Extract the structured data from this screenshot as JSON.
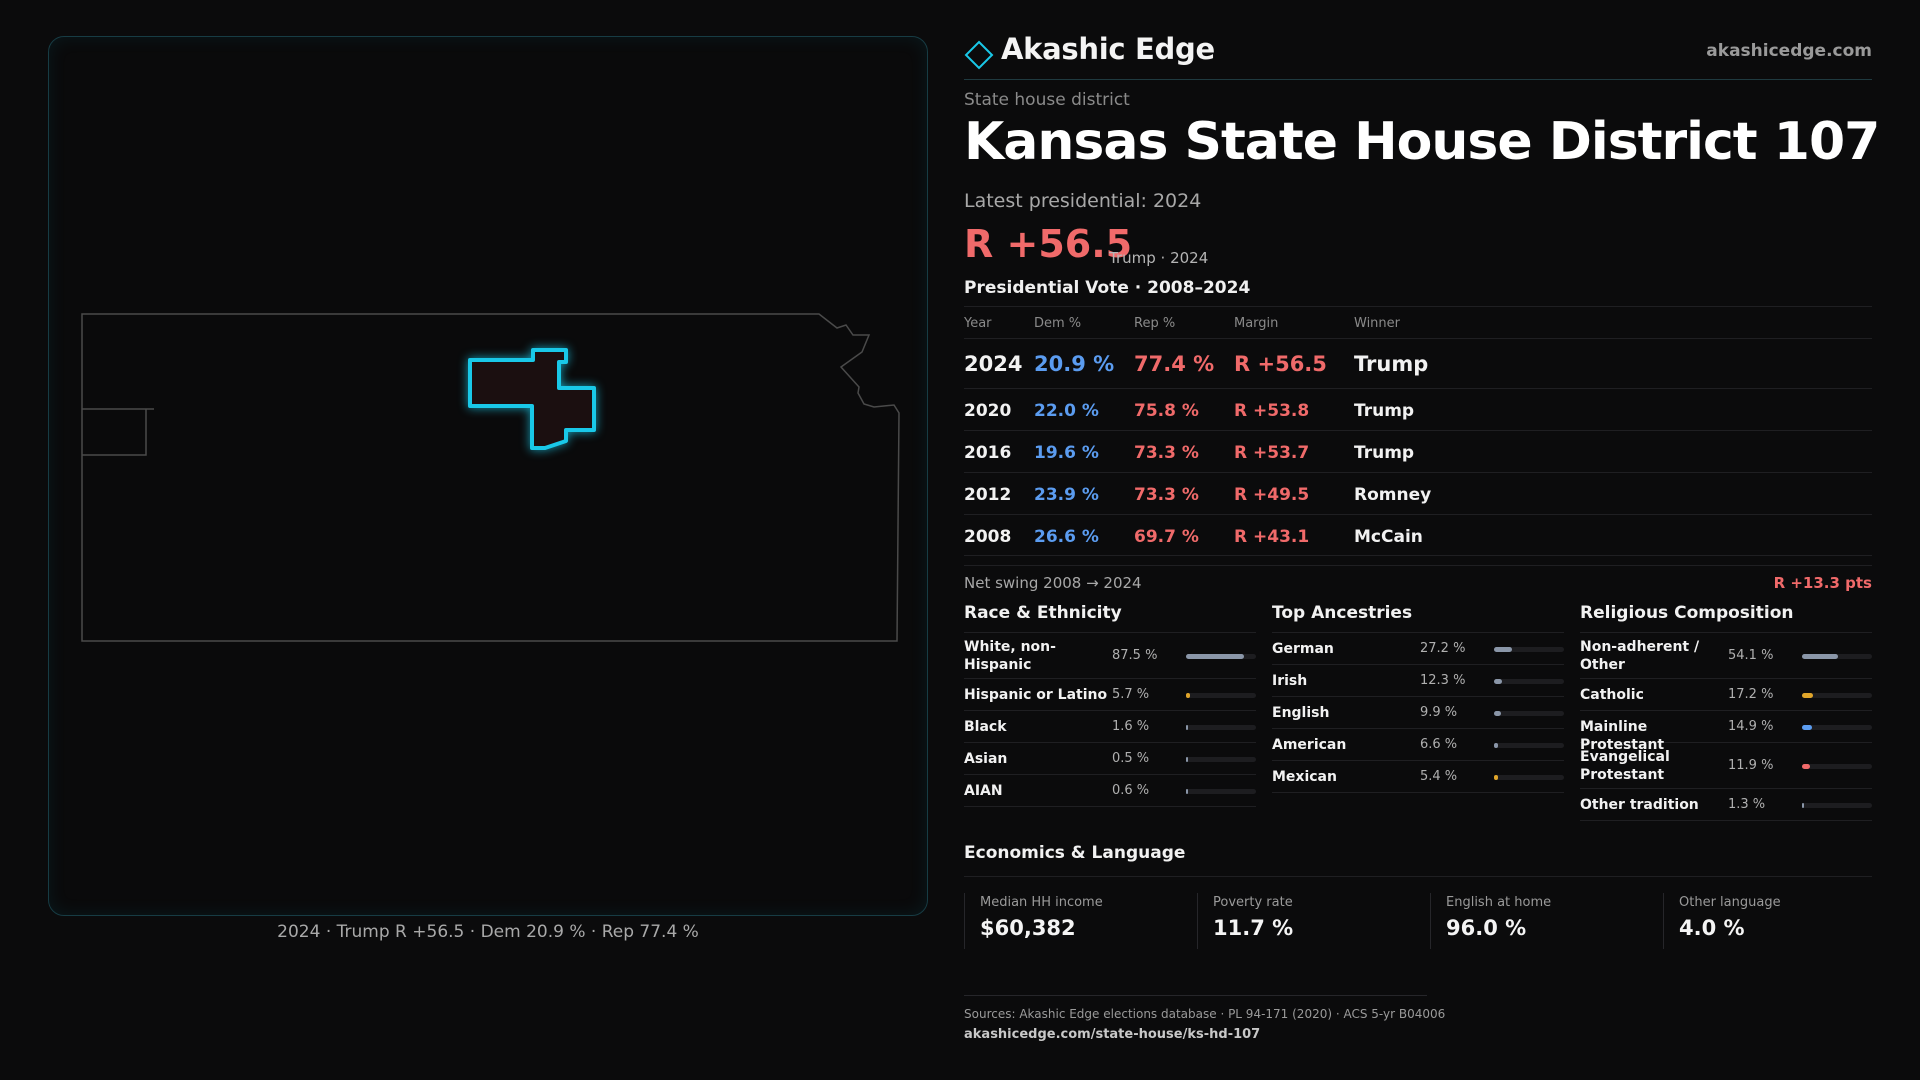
{
  "brand": {
    "name": "Akashic Edge",
    "url": "akashicedge.com"
  },
  "district": {
    "kicker": "State house district",
    "title": "Kansas State House District 107",
    "latest_label": "Latest presidential: 2024",
    "headline_margin": "R +56.5",
    "headline_sub": "Trump · 2024"
  },
  "map": {
    "caption": "2024 · Trump R +56.5 · Dem 20.9 % · Rep 77.4 %",
    "highlight_color": "#19c8e8",
    "state_outline_color": "#4a4a4a"
  },
  "vote": {
    "title": "Presidential Vote · 2008–2024",
    "headers": {
      "year": "Year",
      "dem": "Dem %",
      "rep": "Rep %",
      "margin": "Margin",
      "winner": "Winner"
    },
    "rows": [
      {
        "year": "2024",
        "dem": "20.9 %",
        "rep": "77.4 %",
        "margin": "R +56.5",
        "winner": "Trump"
      },
      {
        "year": "2020",
        "dem": "22.0 %",
        "rep": "75.8 %",
        "margin": "R +53.8",
        "winner": "Trump"
      },
      {
        "year": "2016",
        "dem": "19.6 %",
        "rep": "73.3 %",
        "margin": "R +53.7",
        "winner": "Trump"
      },
      {
        "year": "2012",
        "dem": "23.9 %",
        "rep": "73.3 %",
        "margin": "R +49.5",
        "winner": "Romney"
      },
      {
        "year": "2008",
        "dem": "26.6 %",
        "rep": "69.7 %",
        "margin": "R +43.1",
        "winner": "McCain"
      }
    ],
    "swing_label": "Net swing 2008 → 2024",
    "swing_value": "R +13.3 pts"
  },
  "race": {
    "title": "Race & Ethnicity",
    "rows": [
      {
        "label": "White, non-Hispanic",
        "value": "87.5 %",
        "fraction": 0.875,
        "color": "#8a96a8"
      },
      {
        "label": "Hispanic or Latino",
        "value": "5.7 %",
        "fraction": 0.057,
        "color": "#e0a52a"
      },
      {
        "label": "Black",
        "value": "1.6 %",
        "fraction": 0.016,
        "color": "#8a96a8"
      },
      {
        "label": "Asian",
        "value": "0.5 %",
        "fraction": 0.005,
        "color": "#8a96a8"
      },
      {
        "label": "AIAN",
        "value": "0.6 %",
        "fraction": 0.006,
        "color": "#8a96a8"
      }
    ]
  },
  "ancestry": {
    "title": "Top Ancestries",
    "rows": [
      {
        "label": "German",
        "value": "27.2 %",
        "fraction": 0.272,
        "color": "#8a96a8"
      },
      {
        "label": "Irish",
        "value": "12.3 %",
        "fraction": 0.123,
        "color": "#8a96a8"
      },
      {
        "label": "English",
        "value": "9.9 %",
        "fraction": 0.099,
        "color": "#8a96a8"
      },
      {
        "label": "American",
        "value": "6.6 %",
        "fraction": 0.066,
        "color": "#8a96a8"
      },
      {
        "label": "Mexican",
        "value": "5.4 %",
        "fraction": 0.054,
        "color": "#e0a52a"
      }
    ]
  },
  "religion": {
    "title": "Religious Composition",
    "rows": [
      {
        "label": "Non-adherent / Other",
        "value": "54.1 %",
        "fraction": 0.541,
        "color": "#8a96a8"
      },
      {
        "label": "Catholic",
        "value": "17.2 %",
        "fraction": 0.172,
        "color": "#e0a52a"
      },
      {
        "label": "Mainline Protestant",
        "value": "14.9 %",
        "fraction": 0.149,
        "color": "#5b9cf0"
      },
      {
        "label": "Evangelical Protestant",
        "value": "11.9 %",
        "fraction": 0.119,
        "color": "#f06a6a"
      },
      {
        "label": "Other tradition",
        "value": "1.3 %",
        "fraction": 0.013,
        "color": "#8a96a8"
      }
    ]
  },
  "economics": {
    "title": "Economics & Language",
    "items": [
      {
        "label": "Median HH income",
        "value": "$60,382"
      },
      {
        "label": "Poverty rate",
        "value": "11.7 %"
      },
      {
        "label": "English at home",
        "value": "96.0 %"
      },
      {
        "label": "Other language",
        "value": "4.0 %"
      }
    ]
  },
  "footer": {
    "sources": "Sources: Akashic Edge elections database · PL 94-171 (2020) · ACS 5-yr B04006",
    "url": "akashicedge.com/state-house/ks-hd-107"
  },
  "colors": {
    "dem": "#5b9cf0",
    "rep": "#f06a6a",
    "accent": "#19c8e8"
  }
}
